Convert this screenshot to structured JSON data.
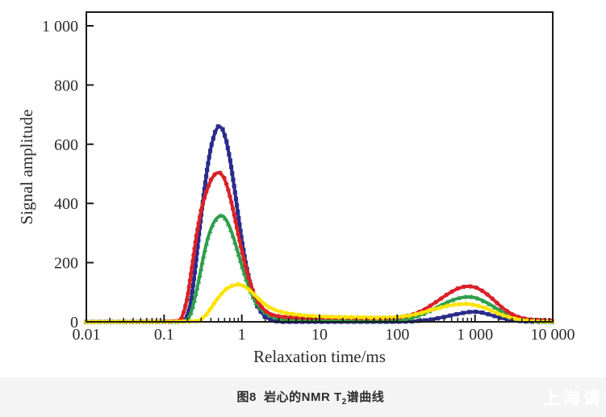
{
  "figure": {
    "caption_prefix": "图8  岩心的NMR T",
    "caption_sub": "2",
    "caption_suffix": "谱曲线",
    "watermark": "上海请教"
  },
  "chart_data": {
    "type": "line",
    "title": "图8 岩心的NMR T2谱曲线",
    "xlabel": "Relaxation time/ms",
    "ylabel": "Signal amplitude",
    "x_scale": "log",
    "x_range": [
      0.01,
      10000
    ],
    "y_range": [
      0,
      1000
    ],
    "grid": false,
    "legend": "none",
    "axis_color": "#1a1a1a",
    "label_color": "#2a2a2a",
    "x_ticks": [
      {
        "v": 0.01,
        "label": "0.01"
      },
      {
        "v": 0.1,
        "label": "0.1"
      },
      {
        "v": 1,
        "label": "1"
      },
      {
        "v": 10,
        "label": "10"
      },
      {
        "v": 100,
        "label": "100"
      },
      {
        "v": 1000,
        "label": "1 000"
      },
      {
        "v": 10000,
        "label": "10 000"
      }
    ],
    "y_ticks": [
      {
        "v": 0,
        "label": "0"
      },
      {
        "v": 200,
        "label": "200"
      },
      {
        "v": 400,
        "label": "400"
      },
      {
        "v": 600,
        "label": "600"
      },
      {
        "v": 800,
        "label": "800"
      },
      {
        "v": 1000,
        "label": "1 000"
      }
    ],
    "series": [
      {
        "name": "blue-squares",
        "color": "#2a2c8c",
        "marker": "square",
        "points": [
          [
            0.01,
            0
          ],
          [
            0.15,
            0
          ],
          [
            0.19,
            5
          ],
          [
            0.22,
            60
          ],
          [
            0.25,
            170
          ],
          [
            0.28,
            290
          ],
          [
            0.32,
            420
          ],
          [
            0.36,
            520
          ],
          [
            0.4,
            590
          ],
          [
            0.45,
            640
          ],
          [
            0.5,
            662
          ],
          [
            0.56,
            655
          ],
          [
            0.63,
            615
          ],
          [
            0.71,
            545
          ],
          [
            0.8,
            455
          ],
          [
            0.9,
            360
          ],
          [
            1.0,
            275
          ],
          [
            1.15,
            185
          ],
          [
            1.35,
            105
          ],
          [
            1.6,
            48
          ],
          [
            2.0,
            15
          ],
          [
            2.6,
            3
          ],
          [
            3.2,
            0
          ],
          [
            6,
            0
          ],
          [
            20,
            0
          ],
          [
            80,
            0
          ],
          [
            150,
            1
          ],
          [
            250,
            6
          ],
          [
            350,
            13
          ],
          [
            500,
            22
          ],
          [
            700,
            30
          ],
          [
            950,
            35
          ],
          [
            1250,
            31
          ],
          [
            1700,
            21
          ],
          [
            2300,
            11
          ],
          [
            3200,
            4
          ],
          [
            4500,
            1
          ],
          [
            6000,
            0
          ],
          [
            10000,
            0
          ]
        ]
      },
      {
        "name": "green-triangles",
        "color": "#2f9e4b",
        "marker": "triangle",
        "points": [
          [
            0.01,
            0
          ],
          [
            0.17,
            0
          ],
          [
            0.21,
            10
          ],
          [
            0.24,
            60
          ],
          [
            0.28,
            140
          ],
          [
            0.32,
            220
          ],
          [
            0.37,
            290
          ],
          [
            0.43,
            335
          ],
          [
            0.5,
            357
          ],
          [
            0.57,
            360
          ],
          [
            0.65,
            340
          ],
          [
            0.75,
            300
          ],
          [
            0.87,
            245
          ],
          [
            1.0,
            190
          ],
          [
            1.2,
            125
          ],
          [
            1.45,
            72
          ],
          [
            1.8,
            38
          ],
          [
            2.4,
            18
          ],
          [
            3.3,
            10
          ],
          [
            5,
            7
          ],
          [
            8,
            5
          ],
          [
            15,
            4
          ],
          [
            30,
            3
          ],
          [
            60,
            3
          ],
          [
            100,
            5
          ],
          [
            150,
            12
          ],
          [
            220,
            27
          ],
          [
            320,
            48
          ],
          [
            450,
            68
          ],
          [
            600,
            80
          ],
          [
            820,
            86
          ],
          [
            1050,
            81
          ],
          [
            1400,
            66
          ],
          [
            1900,
            45
          ],
          [
            2500,
            26
          ],
          [
            3300,
            12
          ],
          [
            4500,
            5
          ],
          [
            6000,
            2
          ],
          [
            8000,
            0
          ],
          [
            10000,
            0
          ]
        ]
      },
      {
        "name": "red-circles",
        "color": "#da2128",
        "marker": "circle",
        "points": [
          [
            0.01,
            0
          ],
          [
            0.14,
            0
          ],
          [
            0.17,
            10
          ],
          [
            0.2,
            80
          ],
          [
            0.23,
            190
          ],
          [
            0.26,
            290
          ],
          [
            0.3,
            380
          ],
          [
            0.35,
            440
          ],
          [
            0.4,
            480
          ],
          [
            0.46,
            502
          ],
          [
            0.52,
            505
          ],
          [
            0.6,
            485
          ],
          [
            0.68,
            440
          ],
          [
            0.78,
            375
          ],
          [
            0.9,
            295
          ],
          [
            1.05,
            215
          ],
          [
            1.25,
            140
          ],
          [
            1.5,
            80
          ],
          [
            1.9,
            40
          ],
          [
            2.5,
            22
          ],
          [
            3.5,
            16
          ],
          [
            5,
            14
          ],
          [
            7,
            13
          ],
          [
            10,
            14
          ],
          [
            15,
            14
          ],
          [
            25,
            13
          ],
          [
            40,
            12
          ],
          [
            70,
            12
          ],
          [
            100,
            14
          ],
          [
            150,
            22
          ],
          [
            220,
            40
          ],
          [
            320,
            68
          ],
          [
            450,
            95
          ],
          [
            600,
            113
          ],
          [
            780,
            121
          ],
          [
            1000,
            118
          ],
          [
            1300,
            102
          ],
          [
            1700,
            77
          ],
          [
            2200,
            49
          ],
          [
            2900,
            27
          ],
          [
            3800,
            14
          ],
          [
            5000,
            8
          ],
          [
            6500,
            6
          ],
          [
            8000,
            5
          ],
          [
            10000,
            4
          ]
        ]
      },
      {
        "name": "yellow-diamonds",
        "color": "#fce303",
        "marker": "diamond",
        "points": [
          [
            0.01,
            0
          ],
          [
            0.25,
            0
          ],
          [
            0.3,
            8
          ],
          [
            0.36,
            28
          ],
          [
            0.43,
            58
          ],
          [
            0.52,
            88
          ],
          [
            0.62,
            110
          ],
          [
            0.75,
            122
          ],
          [
            0.9,
            127
          ],
          [
            1.05,
            122
          ],
          [
            1.25,
            108
          ],
          [
            1.5,
            88
          ],
          [
            1.8,
            68
          ],
          [
            2.2,
            50
          ],
          [
            2.8,
            38
          ],
          [
            3.6,
            30
          ],
          [
            4.8,
            25
          ],
          [
            6.5,
            21
          ],
          [
            9,
            19
          ],
          [
            13,
            17
          ],
          [
            20,
            16
          ],
          [
            32,
            15
          ],
          [
            55,
            14
          ],
          [
            90,
            15
          ],
          [
            140,
            20
          ],
          [
            210,
            31
          ],
          [
            300,
            43
          ],
          [
            420,
            53
          ],
          [
            570,
            59
          ],
          [
            780,
            61
          ],
          [
            1000,
            57
          ],
          [
            1350,
            47
          ],
          [
            1800,
            33
          ],
          [
            2400,
            20
          ],
          [
            3200,
            11
          ],
          [
            4300,
            5
          ],
          [
            6000,
            2
          ],
          [
            8000,
            1
          ],
          [
            10000,
            0
          ]
        ]
      }
    ]
  }
}
